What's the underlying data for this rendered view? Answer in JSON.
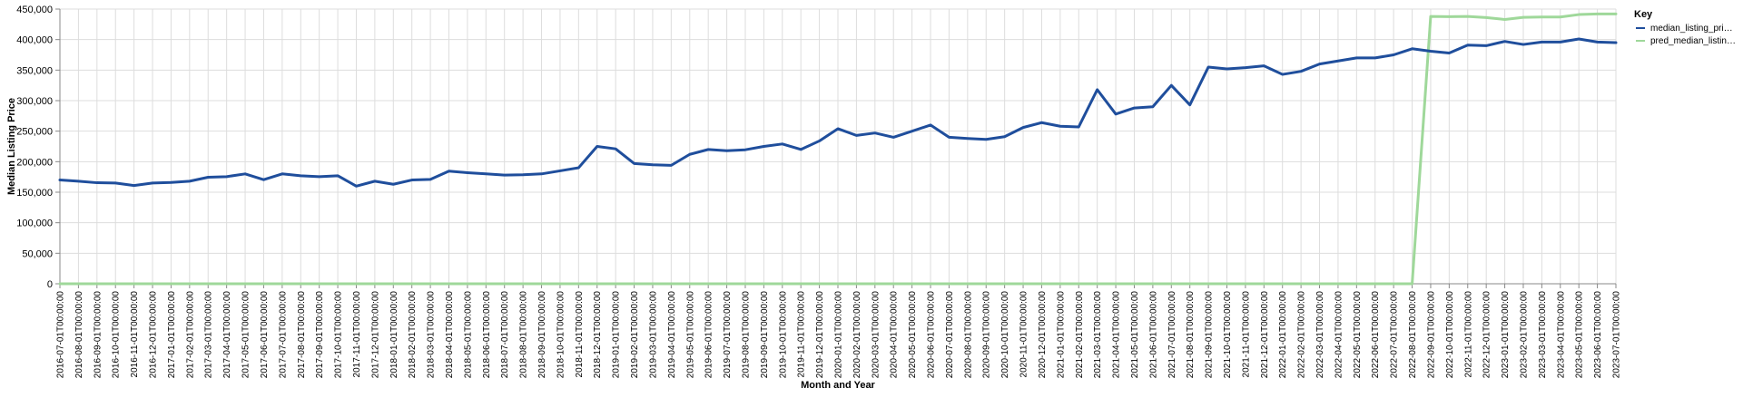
{
  "chart_data": {
    "type": "line",
    "title": "",
    "xlabel": "Month and Year",
    "ylabel": "Median Listing Price",
    "ylim": [
      0,
      450000
    ],
    "yticks": [
      0,
      50000,
      100000,
      150000,
      200000,
      250000,
      300000,
      350000,
      400000,
      450000
    ],
    "ytick_labels": [
      "0",
      "50,000",
      "100,000",
      "150,000",
      "200,000",
      "250,000",
      "300,000",
      "350,000",
      "400,000",
      "450,000"
    ],
    "grid": true,
    "legend": {
      "title": "Key",
      "placement": "top-right"
    },
    "categories": [
      "2016-07-01T00:00:00",
      "2016-08-01T00:00:00",
      "2016-09-01T00:00:00",
      "2016-10-01T00:00:00",
      "2016-11-01T00:00:00",
      "2016-12-01T00:00:00",
      "2017-01-01T00:00:00",
      "2017-02-01T00:00:00",
      "2017-03-01T00:00:00",
      "2017-04-01T00:00:00",
      "2017-05-01T00:00:00",
      "2017-06-01T00:00:00",
      "2017-07-01T00:00:00",
      "2017-08-01T00:00:00",
      "2017-09-01T00:00:00",
      "2017-10-01T00:00:00",
      "2017-11-01T00:00:00",
      "2017-12-01T00:00:00",
      "2018-01-01T00:00:00",
      "2018-02-01T00:00:00",
      "2018-03-01T00:00:00",
      "2018-04-01T00:00:00",
      "2018-05-01T00:00:00",
      "2018-06-01T00:00:00",
      "2018-07-01T00:00:00",
      "2018-08-01T00:00:00",
      "2018-09-01T00:00:00",
      "2018-10-01T00:00:00",
      "2018-11-01T00:00:00",
      "2018-12-01T00:00:00",
      "2019-01-01T00:00:00",
      "2019-02-01T00:00:00",
      "2019-03-01T00:00:00",
      "2019-04-01T00:00:00",
      "2019-05-01T00:00:00",
      "2019-06-01T00:00:00",
      "2019-07-01T00:00:00",
      "2019-08-01T00:00:00",
      "2019-09-01T00:00:00",
      "2019-10-01T00:00:00",
      "2019-11-01T00:00:00",
      "2019-12-01T00:00:00",
      "2020-01-01T00:00:00",
      "2020-02-01T00:00:00",
      "2020-03-01T00:00:00",
      "2020-04-01T00:00:00",
      "2020-05-01T00:00:00",
      "2020-06-01T00:00:00",
      "2020-07-01T00:00:00",
      "2020-08-01T00:00:00",
      "2020-09-01T00:00:00",
      "2020-10-01T00:00:00",
      "2020-11-01T00:00:00",
      "2020-12-01T00:00:00",
      "2021-01-01T00:00:00",
      "2021-02-01T00:00:00",
      "2021-03-01T00:00:00",
      "2021-04-01T00:00:00",
      "2021-05-01T00:00:00",
      "2021-06-01T00:00:00",
      "2021-07-01T00:00:00",
      "2021-08-01T00:00:00",
      "2021-09-01T00:00:00",
      "2021-10-01T00:00:00",
      "2021-11-01T00:00:00",
      "2021-12-01T00:00:00",
      "2022-01-01T00:00:00",
      "2022-02-01T00:00:00",
      "2022-03-01T00:00:00",
      "2022-04-01T00:00:00",
      "2022-05-01T00:00:00",
      "2022-06-01T00:00:00",
      "2022-07-01T00:00:00",
      "2022-08-01T00:00:00",
      "2022-09-01T00:00:00",
      "2022-10-01T00:00:00",
      "2022-11-01T00:00:00",
      "2022-12-01T00:00:00",
      "2023-01-01T00:00:00",
      "2023-02-01T00:00:00",
      "2023-03-01T00:00:00",
      "2023-04-01T00:00:00",
      "2023-05-01T00:00:00",
      "2023-06-01T00:00:00",
      "2023-07-01T00:00:00"
    ],
    "series": [
      {
        "name": "median_listing_price",
        "legend_label": "median_listing_pri…",
        "color": "#1f4e9c",
        "values": [
          170000,
          168000,
          165500,
          165000,
          161000,
          165000,
          166000,
          168000,
          174500,
          175500,
          180000,
          170500,
          180000,
          177000,
          175500,
          177000,
          160000,
          168000,
          163000,
          170000,
          171000,
          184500,
          182000,
          180000,
          178000,
          178500,
          180000,
          185000,
          190000,
          225000,
          221000,
          197000,
          195000,
          194000,
          212000,
          220000,
          218000,
          219500,
          225000,
          229000,
          220000,
          234000,
          254000,
          243000,
          247000,
          240000,
          250000,
          260000,
          240000,
          238000,
          236500,
          241000,
          256000,
          264000,
          258000,
          257000,
          318000,
          278000,
          288000,
          290000,
          325000,
          293000,
          355000,
          352000,
          354000,
          357000,
          343000,
          348000,
          360000,
          365000,
          370000,
          370000,
          375000,
          385000,
          381000,
          378000,
          391000,
          390000,
          397000,
          392000,
          396000,
          396000,
          401000,
          396000,
          395000
        ]
      },
      {
        "name": "pred_median_listing_price",
        "legend_label": "pred_median_listin…",
        "color": "#9fd89a",
        "values": [
          0,
          0,
          0,
          0,
          0,
          0,
          0,
          0,
          0,
          0,
          0,
          0,
          0,
          0,
          0,
          0,
          0,
          0,
          0,
          0,
          0,
          0,
          0,
          0,
          0,
          0,
          0,
          0,
          0,
          0,
          0,
          0,
          0,
          0,
          0,
          0,
          0,
          0,
          0,
          0,
          0,
          0,
          0,
          0,
          0,
          0,
          0,
          0,
          0,
          0,
          0,
          0,
          0,
          0,
          0,
          0,
          0,
          0,
          0,
          0,
          0,
          0,
          0,
          0,
          0,
          0,
          0,
          0,
          0,
          0,
          0,
          0,
          0,
          0,
          438000,
          437500,
          438000,
          436000,
          433000,
          436500,
          437000,
          437000,
          441000,
          442000,
          442000
        ]
      }
    ]
  }
}
